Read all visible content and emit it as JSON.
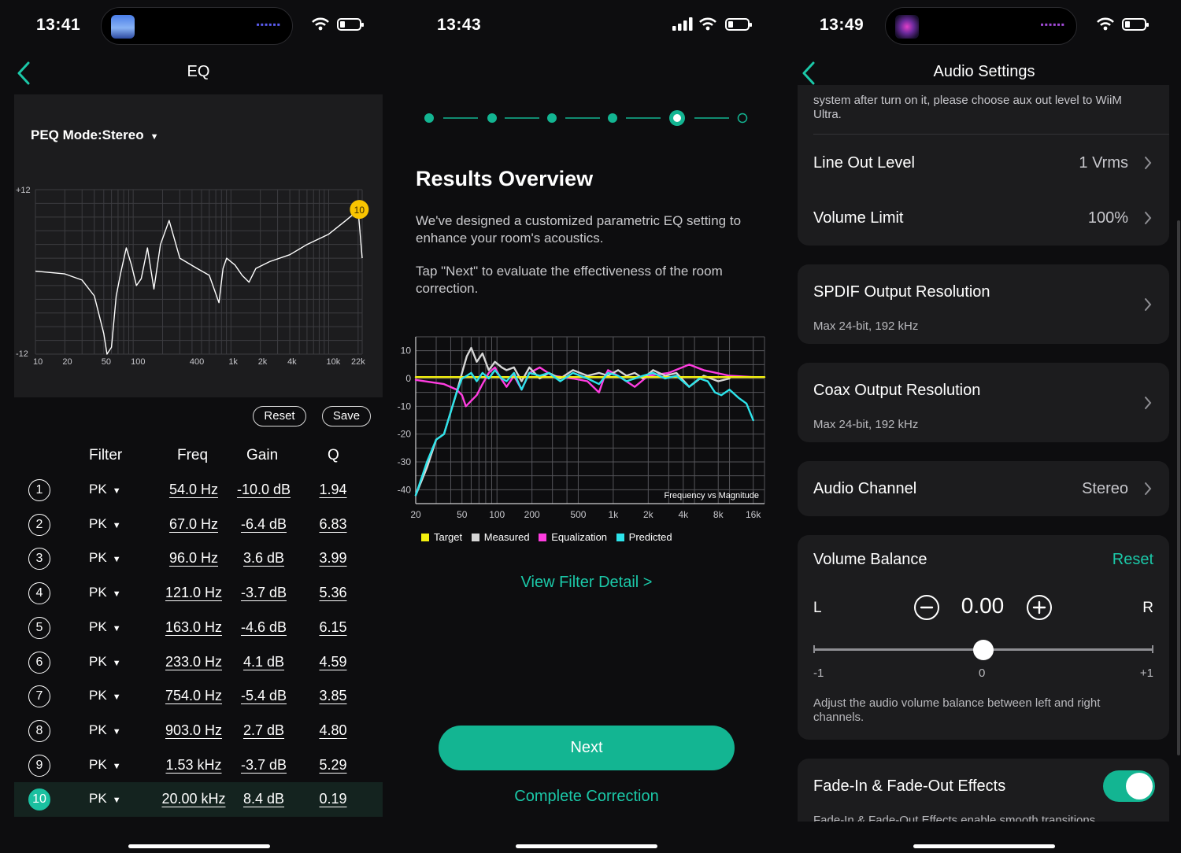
{
  "colors": {
    "accent": "#1bc8a8",
    "button": "#13b592",
    "target": "#f4f10e",
    "measured": "#d6d6d6",
    "equalization": "#ff3de0",
    "predicted": "#2de3ea"
  },
  "left": {
    "time": "13:41",
    "title": "EQ",
    "peq_mode": "PEQ Mode:Stereo",
    "graph_y_top": "+12",
    "graph_y_bottom": "-12",
    "graph_x_ticks": [
      "10",
      "20",
      "50",
      "100",
      "400",
      "1k",
      "2k",
      "4k",
      "10k",
      "22k"
    ],
    "marker": "10",
    "reset": "Reset",
    "save": "Save",
    "headers": {
      "filter": "Filter",
      "freq": "Freq",
      "gain": "Gain",
      "q": "Q"
    },
    "filters": [
      {
        "n": "1",
        "type": "PK",
        "freq": "54.0 Hz",
        "gain": "-10.0 dB",
        "q": "1.94"
      },
      {
        "n": "2",
        "type": "PK",
        "freq": "67.0 Hz",
        "gain": "-6.4 dB",
        "q": "6.83"
      },
      {
        "n": "3",
        "type": "PK",
        "freq": "96.0 Hz",
        "gain": "3.6 dB",
        "q": "3.99"
      },
      {
        "n": "4",
        "type": "PK",
        "freq": "121.0 Hz",
        "gain": "-3.7 dB",
        "q": "5.36"
      },
      {
        "n": "5",
        "type": "PK",
        "freq": "163.0 Hz",
        "gain": "-4.6 dB",
        "q": "6.15"
      },
      {
        "n": "6",
        "type": "PK",
        "freq": "233.0 Hz",
        "gain": "4.1 dB",
        "q": "4.59"
      },
      {
        "n": "7",
        "type": "PK",
        "freq": "754.0 Hz",
        "gain": "-5.4 dB",
        "q": "3.85"
      },
      {
        "n": "8",
        "type": "PK",
        "freq": "903.0 Hz",
        "gain": "2.7 dB",
        "q": "4.80"
      },
      {
        "n": "9",
        "type": "PK",
        "freq": "1.53 kHz",
        "gain": "-3.7 dB",
        "q": "5.29"
      },
      {
        "n": "10",
        "type": "PK",
        "freq": "20.00 kHz",
        "gain": "8.4 dB",
        "q": "0.19"
      }
    ]
  },
  "middle": {
    "time": "13:43",
    "title": "Results Overview",
    "para1": "We've designed a customized parametric EQ setting to enhance your room's acoustics.",
    "para2": "Tap \"Next\" to evaluate the effectiveness of the room correction.",
    "chart_caption": "Frequency vs Magnitude",
    "y_ticks": [
      "10",
      "0",
      "-10",
      "-20",
      "-30",
      "-40"
    ],
    "x_ticks": [
      "20",
      "50",
      "100",
      "200",
      "500",
      "1k",
      "2k",
      "4k",
      "8k",
      "16k"
    ],
    "legend": [
      "Target",
      "Measured",
      "Equalization",
      "Predicted"
    ],
    "view_detail": "View Filter Detail >",
    "next": "Next",
    "complete": "Complete Correction"
  },
  "right": {
    "time": "13:49",
    "title": "Audio Settings",
    "top_text": "system after turn on it, please choose aux out level to WiiM Ultra.",
    "line_out": {
      "label": "Line Out Level",
      "value": "1 Vrms"
    },
    "volume_limit": {
      "label": "Volume Limit",
      "value": "100%"
    },
    "spdif": {
      "label": "SPDIF Output Resolution",
      "sub": "Max 24-bit, 192 kHz"
    },
    "coax": {
      "label": "Coax Output Resolution",
      "sub": "Max 24-bit, 192 kHz"
    },
    "channel": {
      "label": "Audio Channel",
      "value": "Stereo"
    },
    "balance": {
      "label": "Volume Balance",
      "reset": "Reset",
      "left": "L",
      "right": "R",
      "value": "0.00",
      "min": "-1",
      "mid": "0",
      "max": "+1",
      "position": 0.5,
      "desc": "Adjust the audio volume balance between left and right channels."
    },
    "fade": {
      "label": "Fade-In & Fade-Out Effects",
      "enabled": true,
      "desc": "Fade-In & Fade-Out Effects enable smooth transitions"
    }
  },
  "chart_data": [
    {
      "type": "line",
      "title": "",
      "xscale": "log",
      "xlim": [
        10,
        22000
      ],
      "ylim": [
        -12,
        12
      ],
      "x_ticks": [
        "10",
        "20",
        "50",
        "100",
        "400",
        "1k",
        "2k",
        "4k",
        "10k",
        "22k"
      ],
      "series": [
        {
          "name": "",
          "x": [
            10,
            20,
            30,
            40,
            50,
            54,
            60,
            67,
            75,
            85,
            96,
            108,
            121,
            140,
            163,
            190,
            233,
            300,
            450,
            600,
            754,
            830,
            903,
            1100,
            1300,
            1530,
            1800,
            2500,
            4000,
            6000,
            10000,
            15000,
            20000,
            22000
          ],
          "y": [
            0.1,
            -0.3,
            -1.2,
            -3.5,
            -9.0,
            -12,
            -11,
            -3.5,
            0,
            3.5,
            1.0,
            -2.0,
            -1.0,
            3.5,
            -2.5,
            4.0,
            7.5,
            2.0,
            0.5,
            -0.5,
            -4.5,
            0.5,
            2.0,
            1.0,
            -0.5,
            -1.5,
            0.5,
            1.5,
            2.5,
            4.0,
            5.5,
            7.5,
            9.0,
            2.0
          ]
        }
      ]
    },
    {
      "type": "line",
      "title": "Frequency vs Magnitude",
      "xscale": "log",
      "xlim": [
        20,
        20000
      ],
      "ylim": [
        -45,
        15
      ],
      "x_ticks": [
        "20",
        "50",
        "100",
        "200",
        "500",
        "1k",
        "2k",
        "4k",
        "8k",
        "16k"
      ],
      "y_ticks": [
        "10",
        "0",
        "-10",
        "-20",
        "-30",
        "-40"
      ],
      "series": [
        {
          "name": "Target",
          "x": [
            20,
            20000
          ],
          "y": [
            0.5,
            0.5
          ]
        },
        {
          "name": "Measured",
          "x": [
            20,
            25,
            30,
            35,
            40,
            45,
            50,
            55,
            60,
            67,
            75,
            85,
            96,
            110,
            121,
            140,
            163,
            190,
            233,
            280,
            350,
            450,
            600,
            754,
            903,
            1100,
            1300,
            1530,
            1800,
            2200,
            2800,
            3500,
            4500,
            6000,
            8000,
            10000
          ],
          "y": [
            -42,
            -32,
            -22,
            -20,
            -12,
            -5,
            2,
            8,
            11,
            6,
            9,
            3,
            6,
            4,
            3,
            4,
            -1,
            4,
            0,
            2,
            0,
            3,
            1,
            2,
            1,
            3,
            1,
            2,
            0,
            3,
            1,
            2,
            -3,
            1,
            -1,
            0
          ]
        },
        {
          "name": "Equalization",
          "x": [
            20,
            35,
            45,
            50,
            54,
            60,
            67,
            75,
            85,
            96,
            108,
            121,
            140,
            163,
            190,
            233,
            300,
            450,
            600,
            754,
            830,
            903,
            1100,
            1530,
            2000,
            3000,
            4500,
            6000,
            10000,
            16000
          ],
          "y": [
            -0.5,
            -2,
            -4,
            -6,
            -10,
            -8,
            -6,
            -2,
            2,
            4,
            0,
            -3,
            1,
            -4,
            2,
            4,
            1,
            0,
            -1,
            -5,
            0,
            3,
            1,
            -3,
            1,
            2,
            5,
            3,
            1,
            0.5
          ]
        },
        {
          "name": "Predicted",
          "x": [
            20,
            25,
            30,
            35,
            40,
            45,
            50,
            55,
            60,
            67,
            75,
            85,
            96,
            110,
            121,
            140,
            163,
            190,
            233,
            280,
            350,
            450,
            600,
            754,
            903,
            1100,
            1300,
            1530,
            1800,
            2200,
            2800,
            3500,
            4500,
            5500,
            6500,
            7500,
            8500,
            10000,
            12000,
            14000,
            16000
          ],
          "y": [
            -42,
            -30,
            -22,
            -20,
            -12,
            -5,
            0,
            1,
            2,
            -1,
            2,
            0,
            3,
            0,
            -1,
            2,
            -4,
            2,
            1,
            2,
            -1,
            2,
            0,
            -2,
            2,
            1,
            -1,
            0,
            1,
            2,
            0,
            1,
            -3,
            0,
            -1,
            -5,
            -6,
            -4,
            -7,
            -9,
            -15
          ]
        }
      ]
    }
  ]
}
